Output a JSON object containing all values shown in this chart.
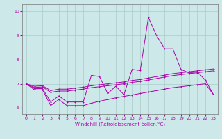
{
  "xlabel": "Windchill (Refroidissement éolien,°C)",
  "background_color": "#cce8e8",
  "grid_color": "#aacccc",
  "line_color": "#aa00aa",
  "xlim": [
    -0.5,
    23.5
  ],
  "ylim": [
    5.75,
    10.3
  ],
  "xticks": [
    0,
    1,
    2,
    3,
    4,
    5,
    6,
    7,
    8,
    9,
    10,
    11,
    12,
    13,
    14,
    15,
    16,
    17,
    18,
    19,
    20,
    21,
    22,
    23
  ],
  "yticks": [
    6,
    7,
    8,
    9,
    10
  ],
  "y_spike": [
    7.0,
    6.8,
    6.8,
    6.25,
    6.5,
    6.25,
    6.25,
    6.25,
    7.35,
    7.3,
    6.6,
    6.9,
    6.55,
    7.6,
    7.55,
    9.75,
    9.0,
    8.45,
    8.45,
    7.6,
    7.45,
    7.5,
    7.15,
    6.55
  ],
  "y_upper": [
    7.0,
    6.9,
    6.92,
    6.72,
    6.78,
    6.78,
    6.82,
    6.86,
    6.92,
    6.96,
    7.0,
    7.04,
    7.08,
    7.14,
    7.18,
    7.24,
    7.3,
    7.36,
    7.42,
    7.46,
    7.5,
    7.54,
    7.58,
    7.62
  ],
  "y_mid": [
    7.0,
    6.85,
    6.87,
    6.65,
    6.7,
    6.7,
    6.74,
    6.78,
    6.84,
    6.88,
    6.92,
    6.96,
    7.0,
    7.06,
    7.1,
    7.16,
    7.22,
    7.28,
    7.34,
    7.38,
    7.42,
    7.46,
    7.5,
    7.54
  ],
  "y_lower": [
    7.0,
    6.75,
    6.75,
    6.1,
    6.35,
    6.1,
    6.1,
    6.1,
    6.2,
    6.28,
    6.35,
    6.42,
    6.48,
    6.54,
    6.6,
    6.66,
    6.72,
    6.78,
    6.84,
    6.88,
    6.92,
    6.96,
    7.0,
    6.55
  ]
}
